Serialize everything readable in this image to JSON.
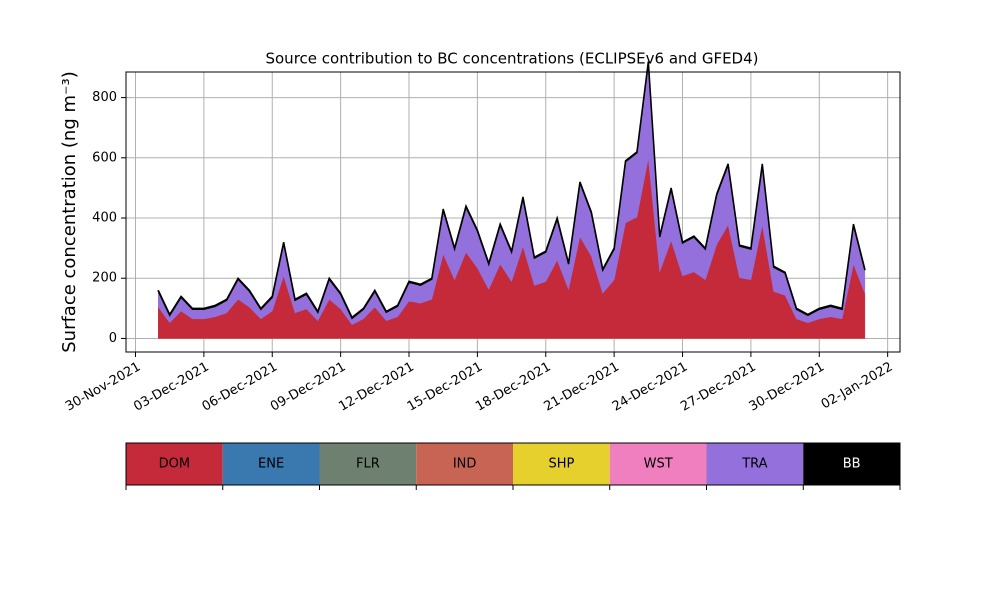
{
  "chart_data": {
    "type": "stacked_area",
    "title": "Source contribution to BC concentrations (ECLIPSEv6 and GFED4)",
    "y_label": "Surface concentration (ng m⁻³)",
    "x": [
      "2021-12-01T00:00",
      "2021-12-01T12:00",
      "2021-12-02T00:00",
      "2021-12-02T12:00",
      "2021-12-03T00:00",
      "2021-12-03T12:00",
      "2021-12-04T00:00",
      "2021-12-04T12:00",
      "2021-12-05T00:00",
      "2021-12-05T12:00",
      "2021-12-06T00:00",
      "2021-12-06T12:00",
      "2021-12-07T00:00",
      "2021-12-07T12:00",
      "2021-12-08T00:00",
      "2021-12-08T12:00",
      "2021-12-09T00:00",
      "2021-12-09T12:00",
      "2021-12-10T00:00",
      "2021-12-10T12:00",
      "2021-12-11T00:00",
      "2021-12-11T12:00",
      "2021-12-12T00:00",
      "2021-12-12T12:00",
      "2021-12-13T00:00",
      "2021-12-13T12:00",
      "2021-12-14T00:00",
      "2021-12-14T12:00",
      "2021-12-15T00:00",
      "2021-12-15T12:00",
      "2021-12-16T00:00",
      "2021-12-16T12:00",
      "2021-12-17T00:00",
      "2021-12-17T12:00",
      "2021-12-18T00:00",
      "2021-12-18T12:00",
      "2021-12-19T00:00",
      "2021-12-19T12:00",
      "2021-12-20T00:00",
      "2021-12-20T12:00",
      "2021-12-21T00:00",
      "2021-12-21T12:00",
      "2021-12-22T00:00",
      "2021-12-22T12:00",
      "2021-12-23T00:00",
      "2021-12-23T12:00",
      "2021-12-24T00:00",
      "2021-12-24T12:00",
      "2021-12-25T00:00",
      "2021-12-25T12:00",
      "2021-12-26T00:00",
      "2021-12-26T12:00",
      "2021-12-27T00:00",
      "2021-12-27T12:00",
      "2021-12-28T00:00",
      "2021-12-28T12:00",
      "2021-12-29T00:00",
      "2021-12-29T12:00",
      "2021-12-30T00:00",
      "2021-12-30T12:00",
      "2021-12-31T00:00",
      "2021-12-31T12:00",
      "2022-01-01T00:00"
    ],
    "series": [
      {
        "name": "DOM",
        "color": "#c52a3a",
        "values": [
          104,
          52,
          91,
          65,
          65,
          72,
          85,
          130,
          104,
          65,
          91,
          208,
          85,
          98,
          59,
          130,
          98,
          46,
          65,
          104,
          59,
          72,
          124,
          117,
          130,
          280,
          195,
          286,
          234,
          163,
          247,
          189,
          306,
          176,
          189,
          260,
          163,
          338,
          273,
          150,
          195,
          384,
          403,
          598,
          221,
          325,
          208,
          221,
          195,
          312,
          377,
          202,
          195,
          377,
          156,
          143,
          65,
          52,
          65,
          72,
          65,
          247,
          150
        ]
      },
      {
        "name": "TRA",
        "color": "#9370db",
        "values": [
          53,
          25,
          46,
          32,
          32,
          35,
          42,
          67,
          53,
          32,
          46,
          109,
          42,
          49,
          28,
          67,
          49,
          21,
          32,
          53,
          28,
          35,
          63,
          60,
          67,
          147,
          102,
          151,
          123,
          84,
          130,
          98,
          161,
          91,
          98,
          137,
          84,
          179,
          144,
          77,
          102,
          203,
          214,
          319,
          116,
          172,
          109,
          116,
          102,
          165,
          200,
          105,
          102,
          200,
          81,
          74,
          32,
          25,
          32,
          35,
          32,
          130,
          77
        ]
      },
      {
        "name": "BB",
        "color": "#000000",
        "values": [
          3,
          3,
          3,
          3,
          3,
          3,
          3,
          3,
          3,
          3,
          3,
          3,
          3,
          3,
          3,
          3,
          3,
          3,
          3,
          3,
          3,
          3,
          3,
          3,
          3,
          3,
          3,
          3,
          3,
          3,
          3,
          3,
          3,
          3,
          3,
          3,
          3,
          3,
          3,
          3,
          3,
          3,
          3,
          3,
          3,
          3,
          3,
          3,
          3,
          3,
          3,
          3,
          3,
          3,
          3,
          3,
          3,
          3,
          3,
          3,
          3,
          3,
          3
        ]
      }
    ],
    "legend": [
      {
        "name": "DOM",
        "color": "#c52a3a"
      },
      {
        "name": "ENE",
        "color": "#3a78b0"
      },
      {
        "name": "FLR",
        "color": "#6e8070"
      },
      {
        "name": "IND",
        "color": "#c86454"
      },
      {
        "name": "SHP",
        "color": "#e6d02e"
      },
      {
        "name": "WST",
        "color": "#f07fbf"
      },
      {
        "name": "TRA",
        "color": "#9370db"
      },
      {
        "name": "BB",
        "color": "#000000"
      }
    ],
    "xlim": [
      "2021-11-29T14:00",
      "2022-01-02T13:00"
    ],
    "xticks": [
      {
        "value": "2021-11-30T00:00",
        "label": "30-Nov-2021"
      },
      {
        "value": "2021-12-03T00:00",
        "label": "03-Dec-2021"
      },
      {
        "value": "2021-12-06T00:00",
        "label": "06-Dec-2021"
      },
      {
        "value": "2021-12-09T00:00",
        "label": "09-Dec-2021"
      },
      {
        "value": "2021-12-12T00:00",
        "label": "12-Dec-2021"
      },
      {
        "value": "2021-12-15T00:00",
        "label": "15-Dec-2021"
      },
      {
        "value": "2021-12-18T00:00",
        "label": "18-Dec-2021"
      },
      {
        "value": "2021-12-21T00:00",
        "label": "21-Dec-2021"
      },
      {
        "value": "2021-12-24T00:00",
        "label": "24-Dec-2021"
      },
      {
        "value": "2021-12-27T00:00",
        "label": "27-Dec-2021"
      },
      {
        "value": "2021-12-30T00:00",
        "label": "30-Dec-2021"
      },
      {
        "value": "2022-01-02T00:00",
        "label": "02-Jan-2022"
      }
    ],
    "ylim": [
      -45,
      885
    ],
    "yticks": [
      0,
      200,
      400,
      600,
      800
    ],
    "grid": true
  }
}
